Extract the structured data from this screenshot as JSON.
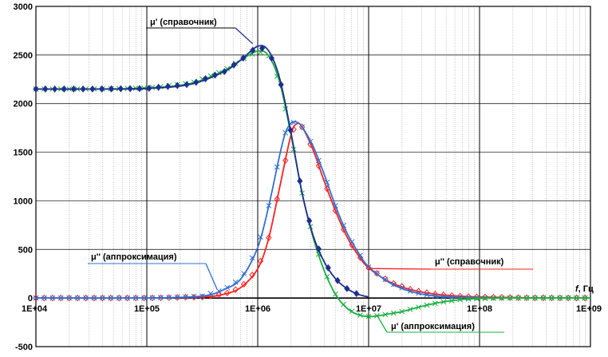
{
  "chart_data": {
    "type": "line",
    "x_scale": "log",
    "xlim": [
      "1E+04",
      "1E+09"
    ],
    "ylim": [
      -500,
      3000
    ],
    "x_tick_labels": [
      "1E+04",
      "1E+05",
      "1E+06",
      "1E+07",
      "1E+08",
      "1E+09"
    ],
    "y_tick_labels": [
      "-500",
      "0",
      "500",
      "1000",
      "1500",
      "2000",
      "2500",
      "3000"
    ],
    "xlabel_italic": "f",
    "xlabel_rest": ", Гц",
    "grid": true,
    "legend": "callout labels on curves",
    "series": [
      {
        "name": "μ' (справочник)",
        "color": "#1f2f8f",
        "marker": "diamond",
        "x": [
          10000,
          31623,
          100000,
          251189,
          501187,
          707946,
          1000000,
          1258925,
          1584893,
          1995262,
          2511886,
          3162278,
          3981072,
          5011872,
          6309573,
          7943282,
          10000000
        ],
        "y": [
          2150,
          2150,
          2155,
          2200,
          2330,
          2450,
          2590,
          2540,
          2250,
          1700,
          1080,
          640,
          370,
          200,
          100,
          40,
          10
        ]
      },
      {
        "name": "μ' (аппроксимация)",
        "color": "#18b040",
        "marker": "x",
        "x": [
          10000,
          31623,
          100000,
          251189,
          501187,
          707946,
          1000000,
          1258925,
          1584893,
          1995262,
          2511886,
          3162278,
          3981072,
          5011872,
          6309573,
          7943282,
          10000000,
          12589254,
          15848932,
          19952623,
          25118864,
          31622777,
          39810717,
          50118723,
          63095734,
          79432823,
          100000000,
          199526231,
          1000000000
        ],
        "y": [
          2150,
          2150,
          2160,
          2210,
          2340,
          2450,
          2540,
          2490,
          2210,
          1680,
          1080,
          620,
          280,
          40,
          -100,
          -170,
          -190,
          -180,
          -160,
          -140,
          -110,
          -80,
          -55,
          -35,
          -20,
          -10,
          -5,
          0,
          0
        ]
      },
      {
        "name": "μ'' (справочник)",
        "color": "#ff2020",
        "marker": "diamond-open",
        "x": [
          10000,
          100000,
          316228,
          501187,
          707946,
          1000000,
          1258925,
          1584893,
          1995262,
          2238721,
          2511886,
          3162278,
          3981072,
          5011872,
          6309573,
          7943282,
          10000000,
          15848932,
          25118864,
          39810717,
          63095734,
          100000000,
          251188643,
          1000000000
        ],
        "y": [
          0,
          0,
          10,
          40,
          110,
          300,
          620,
          1150,
          1680,
          1790,
          1760,
          1520,
          1200,
          900,
          640,
          450,
          310,
          160,
          80,
          40,
          20,
          10,
          3,
          0
        ]
      },
      {
        "name": "μ'' (аппроксимация)",
        "color": "#3070d0",
        "marker": "x",
        "x": [
          10000,
          100000,
          316228,
          501187,
          707946,
          1000000,
          1258925,
          1584893,
          1778279,
          1995262,
          2238721,
          2511886,
          3162278,
          3981072,
          5011872,
          6309573,
          7943282,
          10000000,
          15848932,
          25118864,
          39810717,
          63095734,
          100000000,
          251188643,
          1000000000
        ],
        "y": [
          0,
          0,
          20,
          90,
          200,
          520,
          950,
          1480,
          1700,
          1800,
          1810,
          1760,
          1560,
          1270,
          950,
          680,
          480,
          320,
          150,
          60,
          20,
          5,
          0,
          0,
          0
        ]
      }
    ],
    "annotations": [
      {
        "text": "μ' (справочник)",
        "series": 0
      },
      {
        "text": "μ'' (аппроксимация)",
        "series": 3
      },
      {
        "text": "μ'' (справочник)",
        "series": 2
      },
      {
        "text": "μ' (аппроксимация)",
        "series": 1
      }
    ]
  }
}
